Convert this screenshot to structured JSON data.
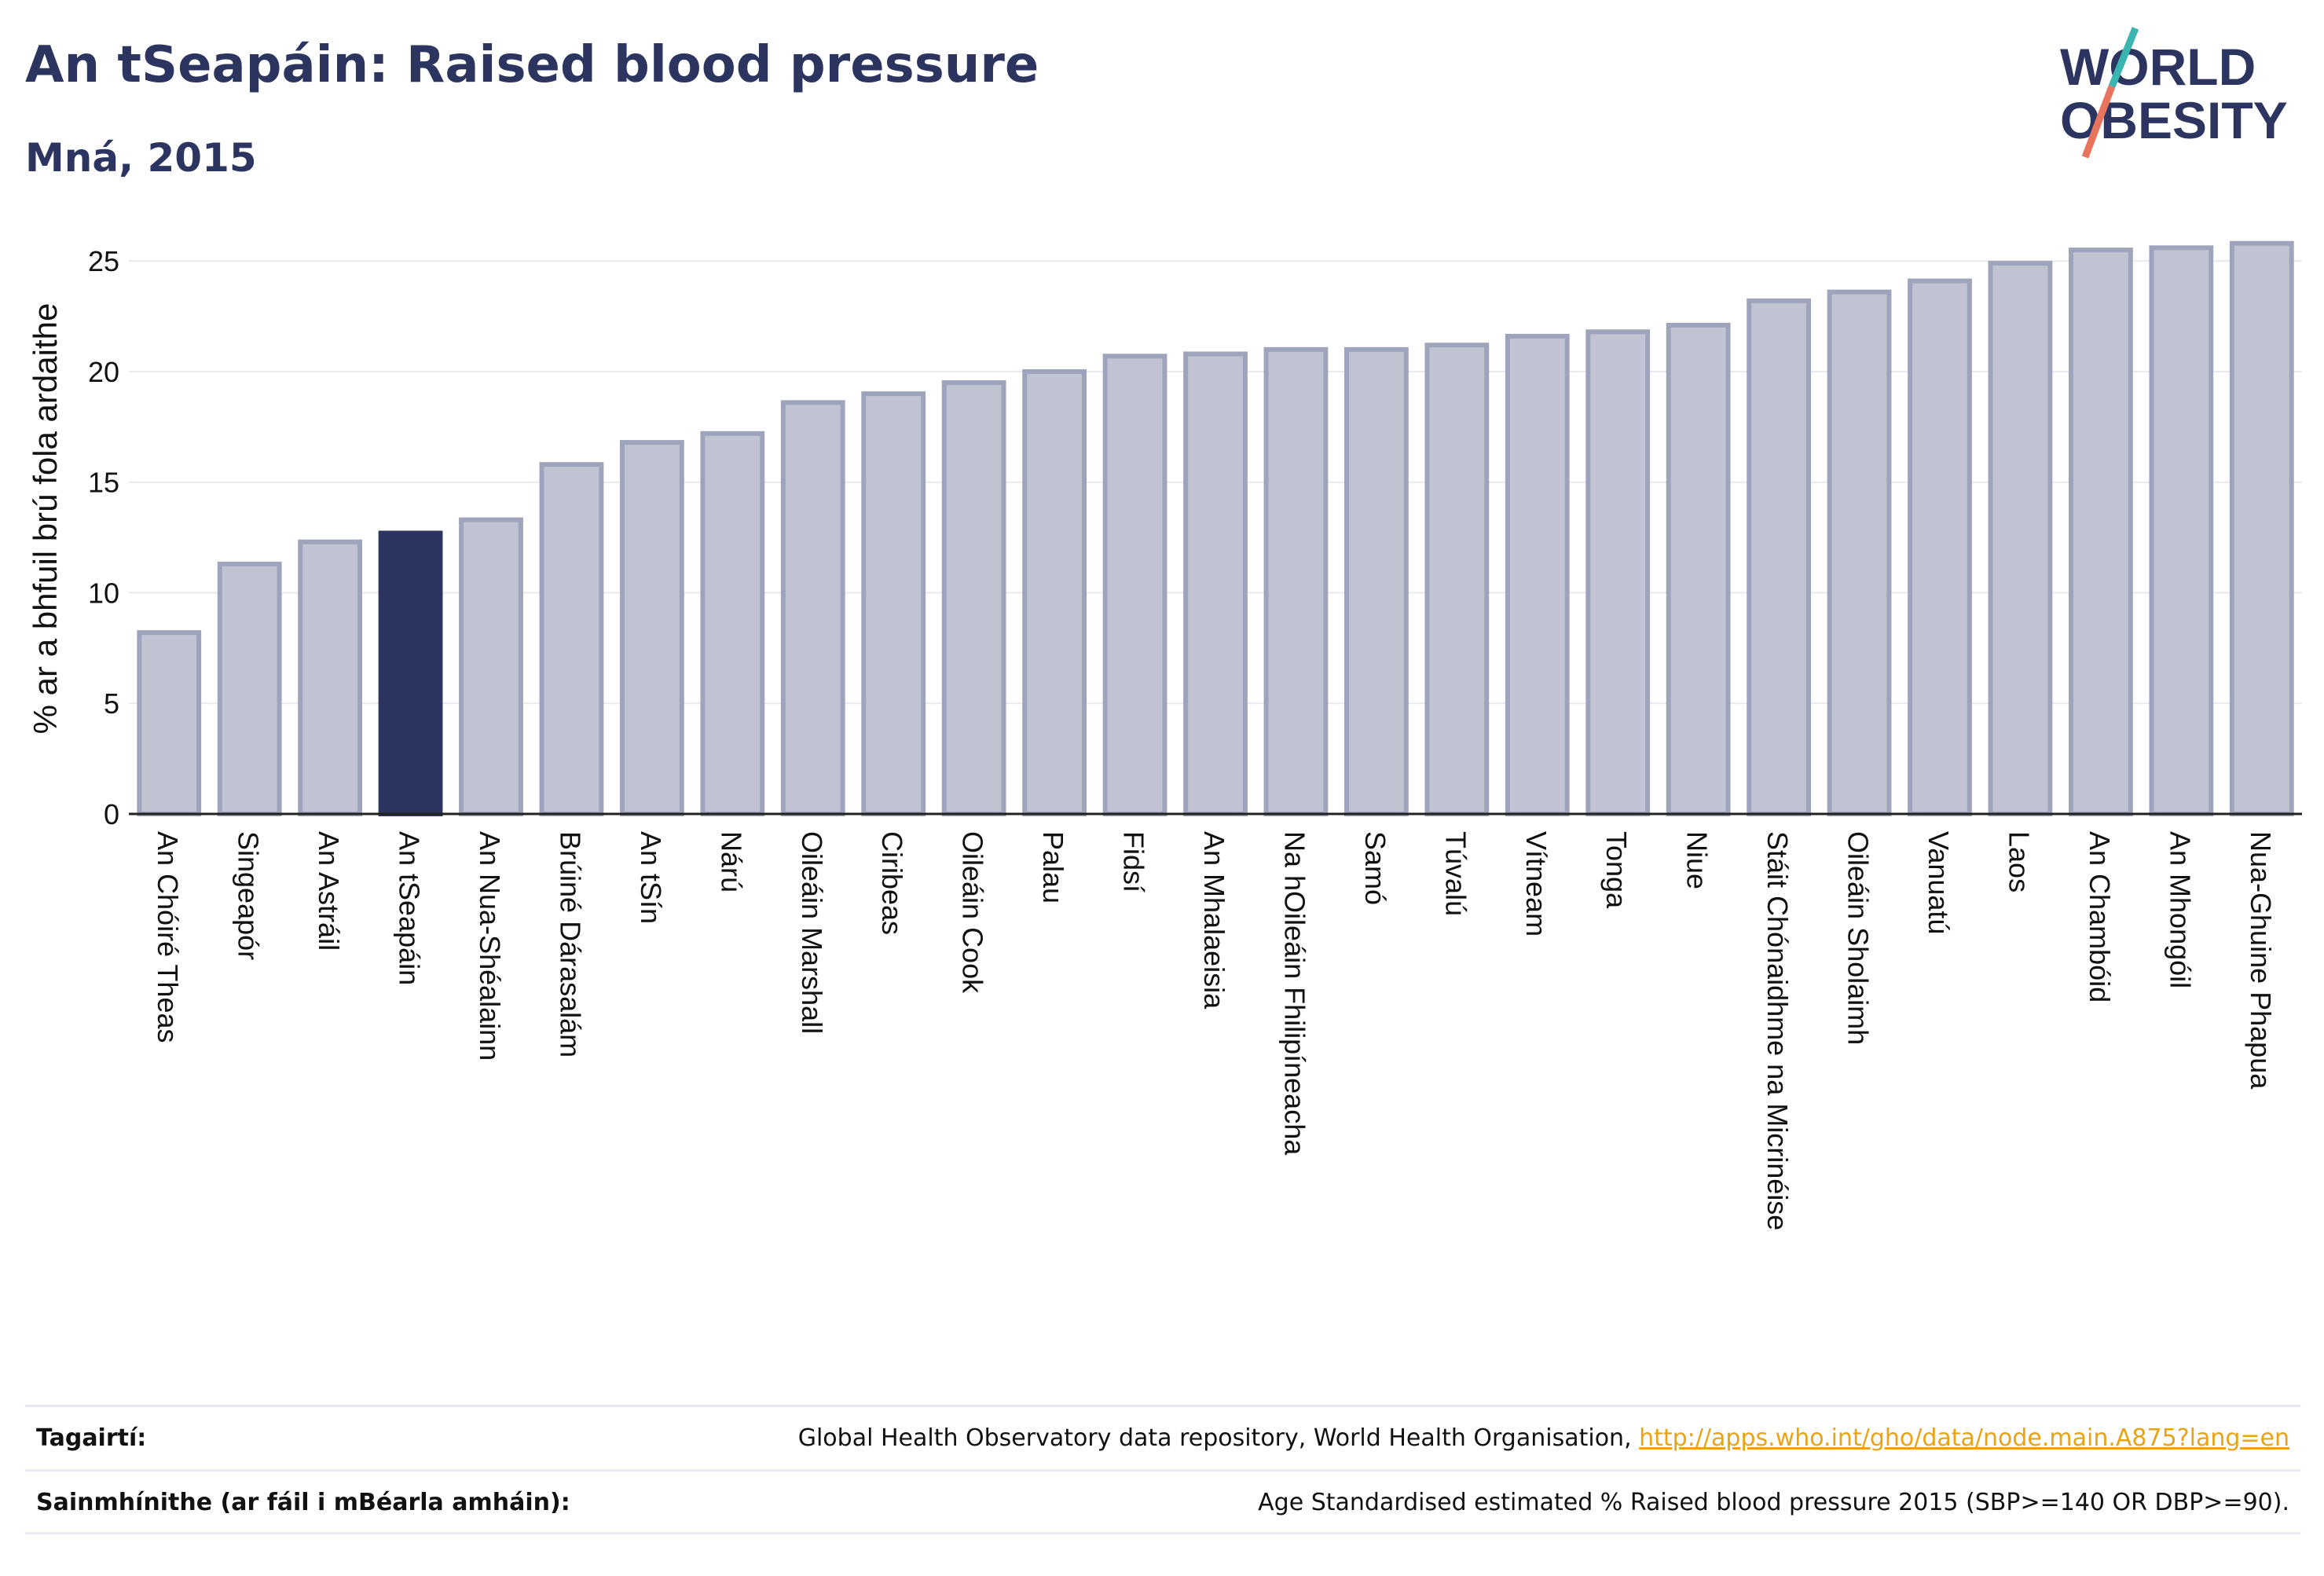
{
  "header": {
    "title": "An tSeapáin: Raised blood pressure",
    "subtitle": "Mná, 2015"
  },
  "logo": {
    "line1": "WORLD",
    "line2": "OBESITY",
    "slash_teal": "#3ab5b0",
    "slash_coral": "#e8735f"
  },
  "colors": {
    "bar": "#bfc3d2",
    "bar_stroke": "#9ea4bb",
    "highlight": "#2b3560",
    "grid": "#e8e9ee",
    "axis": "#222222"
  },
  "chart_data": {
    "type": "bar",
    "ylabel": "% ar a bhfuil brú fola ardaithe",
    "ylim": [
      0,
      26.5
    ],
    "yticks": [
      0,
      5,
      10,
      15,
      20,
      25
    ],
    "grid": true,
    "highlight_category": "An tSeapáin",
    "categories": [
      "An Chóiré Theas",
      "Singeapór",
      "An Astráil",
      "An tSeapáin",
      "An Nua-Shéalainn",
      "Brúiné Dárasalám",
      "An tSín",
      "Nárú",
      "Oileáin Marshall",
      "Ciribeas",
      "Oileáin Cook",
      "Palau",
      "Fidsí",
      "An Mhalaeisia",
      "Na hOileáin Fhilipíneacha",
      "Samó",
      "Túvalú",
      "Vítneam",
      "Tonga",
      "Niue",
      "Stáit Chónaidhme na Micrinéise",
      "Oileáin Sholaimh",
      "Vanuatú",
      "Laos",
      "An Chambóid",
      "An Mhongóil",
      "Nua-Ghuine Phapua"
    ],
    "values": [
      8.2,
      11.3,
      12.3,
      12.7,
      13.3,
      15.8,
      16.8,
      17.2,
      18.6,
      19.0,
      19.5,
      20.0,
      20.7,
      20.8,
      21.0,
      21.0,
      21.2,
      21.6,
      21.8,
      22.1,
      23.2,
      23.6,
      24.1,
      24.9,
      25.5,
      25.6,
      25.8
    ]
  },
  "footer": {
    "references_label": "Tagairtí:",
    "references_text": "Global Health Observatory data repository, World Health Organisation, ",
    "references_link": "http://apps.who.int/gho/data/node.main.A875?lang=en",
    "definitions_label": "Sainmhínithe (ar fáil i mBéarla amháin):",
    "definitions_text": "Age Standardised estimated % Raised blood pressure 2015 (SBP>=140 OR DBP>=90)."
  }
}
